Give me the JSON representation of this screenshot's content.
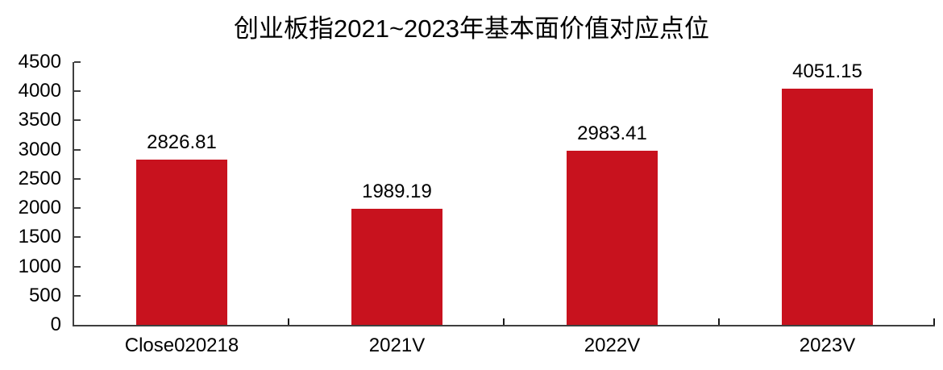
{
  "chart_data": {
    "type": "bar",
    "title": "创业板指2021~2023年基本面价值对应点位",
    "categories": [
      "Close020218",
      "2021V",
      "2022V",
      "2023V"
    ],
    "values": [
      2826.81,
      1989.19,
      2983.41,
      4051.15
    ],
    "data_labels": [
      "2826.81",
      "1989.19",
      "2983.41",
      "4051.15"
    ],
    "xlabel": "",
    "ylabel": "",
    "ylim": [
      0,
      4500
    ],
    "ytick_interval": 500,
    "ytick_labels": [
      "0",
      "500",
      "1000",
      "1500",
      "2000",
      "2500",
      "3000",
      "3500",
      "4000",
      "4500"
    ],
    "grid": false,
    "legend_visible": false,
    "colors": {
      "bar": "#C8121E",
      "axis": "#3f3f3f",
      "text": "#000000",
      "background": "#FFFFFF"
    }
  }
}
